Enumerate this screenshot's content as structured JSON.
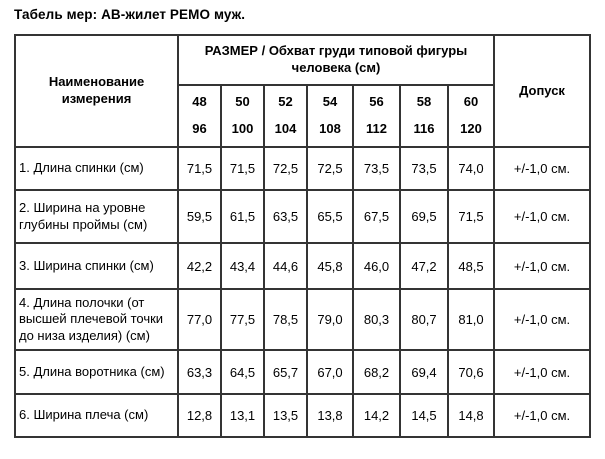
{
  "title": "Табель мер: АВ-жилет РЕМО муж.",
  "table": {
    "name_header": "Наименование измерения",
    "size_header": "РАЗМЕР / Обхват груди типовой фигуры человека (см)",
    "tolerance_header": "Допуск",
    "sizes": [
      {
        "size": "48",
        "chest": "96"
      },
      {
        "size": "50",
        "chest": "100"
      },
      {
        "size": "52",
        "chest": "104"
      },
      {
        "size": "54",
        "chest": "108"
      },
      {
        "size": "56",
        "chest": "112"
      },
      {
        "size": "58",
        "chest": "116"
      },
      {
        "size": "60",
        "chest": "120"
      }
    ],
    "rows": [
      {
        "label": "1. Длина спинки (см)",
        "values": [
          "71,5",
          "71,5",
          "72,5",
          "72,5",
          "73,5",
          "73,5",
          "74,0"
        ],
        "tolerance": "+/-1,0 см."
      },
      {
        "label": "2. Ширина на уровне глубины проймы (см)",
        "values": [
          "59,5",
          "61,5",
          "63,5",
          "65,5",
          "67,5",
          "69,5",
          "71,5"
        ],
        "tolerance": "+/-1,0 см."
      },
      {
        "label": "3. Ширина спинки (см)",
        "values": [
          "42,2",
          "43,4",
          "44,6",
          "45,8",
          "46,0",
          "47,2",
          "48,5"
        ],
        "tolerance": "+/-1,0 см."
      },
      {
        "label": "4. Длина полочки  (от высшей плечевой точки до низа изделия) (см)",
        "values": [
          "77,0",
          "77,5",
          "78,5",
          "79,0",
          "80,3",
          "80,7",
          "81,0"
        ],
        "tolerance": "+/-1,0 см."
      },
      {
        "label": "5. Длина воротника (см)",
        "values": [
          "63,3",
          "64,5",
          "65,7",
          "67,0",
          "68,2",
          "69,4",
          "70,6"
        ],
        "tolerance": "+/-1,0 см."
      },
      {
        "label": "6. Ширина плеча (см)",
        "values": [
          "12,8",
          "13,1",
          "13,5",
          "13,8",
          "14,2",
          "14,5",
          "14,8"
        ],
        "tolerance": "+/-1,0 см."
      }
    ]
  }
}
